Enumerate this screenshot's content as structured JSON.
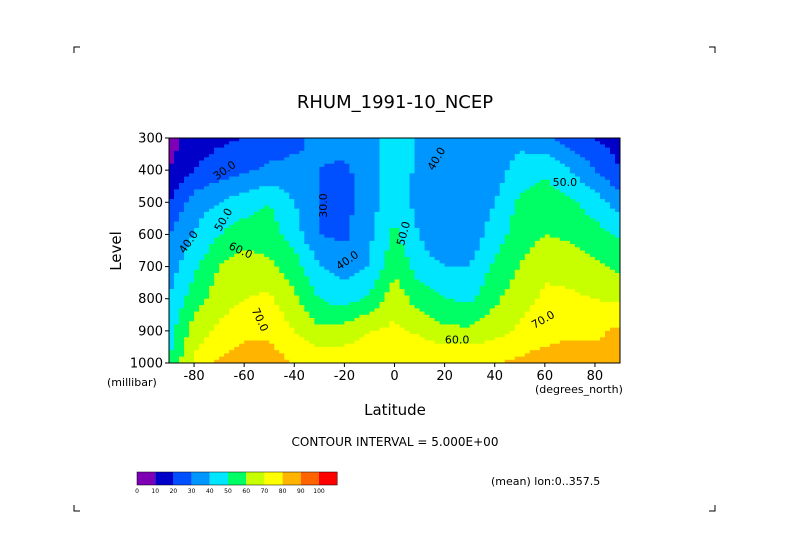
{
  "chart_data": {
    "type": "heatmap",
    "title": "RHUM_1991-10_NCEP",
    "xlabel": "Latitude",
    "ylabel": "Level",
    "x_units": "(degrees_north)",
    "y_units": "(millibar)",
    "xlim": [
      -90,
      90
    ],
    "ylim": [
      1000,
      300
    ],
    "x_ticks": [
      -80,
      -60,
      -40,
      -20,
      0,
      20,
      40,
      60,
      80
    ],
    "x_tick_labels": [
      "-80",
      "-60",
      "-40",
      "-20",
      "0",
      "20",
      "40",
      "60",
      "80"
    ],
    "y_ticks": [
      300,
      400,
      500,
      600,
      700,
      800,
      900,
      1000
    ],
    "y_tick_labels": [
      "300",
      "400",
      "500",
      "600",
      "700",
      "800",
      "900",
      "1000"
    ],
    "latitudes": [
      -90,
      -80,
      -70,
      -60,
      -50,
      -40,
      -30,
      -20,
      -10,
      0,
      10,
      20,
      30,
      40,
      50,
      60,
      70,
      80,
      90
    ],
    "levels": [
      300,
      400,
      500,
      600,
      700,
      800,
      900,
      1000
    ],
    "values": [
      [
        5,
        15,
        18,
        20,
        24,
        28,
        32,
        35,
        38,
        45,
        38,
        30,
        30,
        33,
        36,
        33,
        25,
        20,
        15
      ],
      [
        10,
        20,
        25,
        28,
        32,
        32,
        30,
        28,
        35,
        45,
        38,
        33,
        30,
        35,
        45,
        48,
        40,
        30,
        20
      ],
      [
        20,
        35,
        40,
        45,
        50,
        40,
        30,
        27,
        35,
        48,
        35,
        30,
        32,
        40,
        52,
        56,
        52,
        45,
        35
      ],
      [
        30,
        40,
        50,
        55,
        55,
        45,
        30,
        28,
        38,
        52,
        40,
        30,
        33,
        45,
        55,
        60,
        58,
        54,
        48
      ],
      [
        35,
        48,
        60,
        65,
        62,
        55,
        40,
        35,
        40,
        58,
        45,
        40,
        40,
        52,
        60,
        68,
        66,
        62,
        58
      ],
      [
        40,
        55,
        65,
        70,
        72,
        62,
        50,
        45,
        52,
        66,
        55,
        50,
        48,
        58,
        66,
        72,
        72,
        70,
        68
      ],
      [
        45,
        65,
        72,
        78,
        78,
        70,
        62,
        65,
        70,
        72,
        68,
        62,
        62,
        66,
        72,
        75,
        78,
        78,
        82
      ],
      [
        50,
        72,
        82,
        85,
        84,
        80,
        78,
        76,
        76,
        78,
        80,
        80,
        80,
        80,
        82,
        85,
        86,
        84,
        80
      ]
    ],
    "contour_interval": "CONTOUR INTERVAL = 5.000E+00",
    "contour_labels": [
      "30.0",
      "40.0",
      "50.0",
      "60.0",
      "70.0"
    ],
    "colorbar": {
      "ticks": [
        "0",
        "10",
        "20",
        "30",
        "40",
        "50",
        "60",
        "70",
        "80",
        "90",
        "100"
      ],
      "colors": [
        "#7d00b4",
        "#0000c8",
        "#0050ff",
        "#0096ff",
        "#00e6ff",
        "#00ff64",
        "#c8ff00",
        "#ffff00",
        "#ffb400",
        "#ff6400",
        "#ff0000"
      ]
    },
    "footnote": "(mean) lon:0..357.5"
  }
}
